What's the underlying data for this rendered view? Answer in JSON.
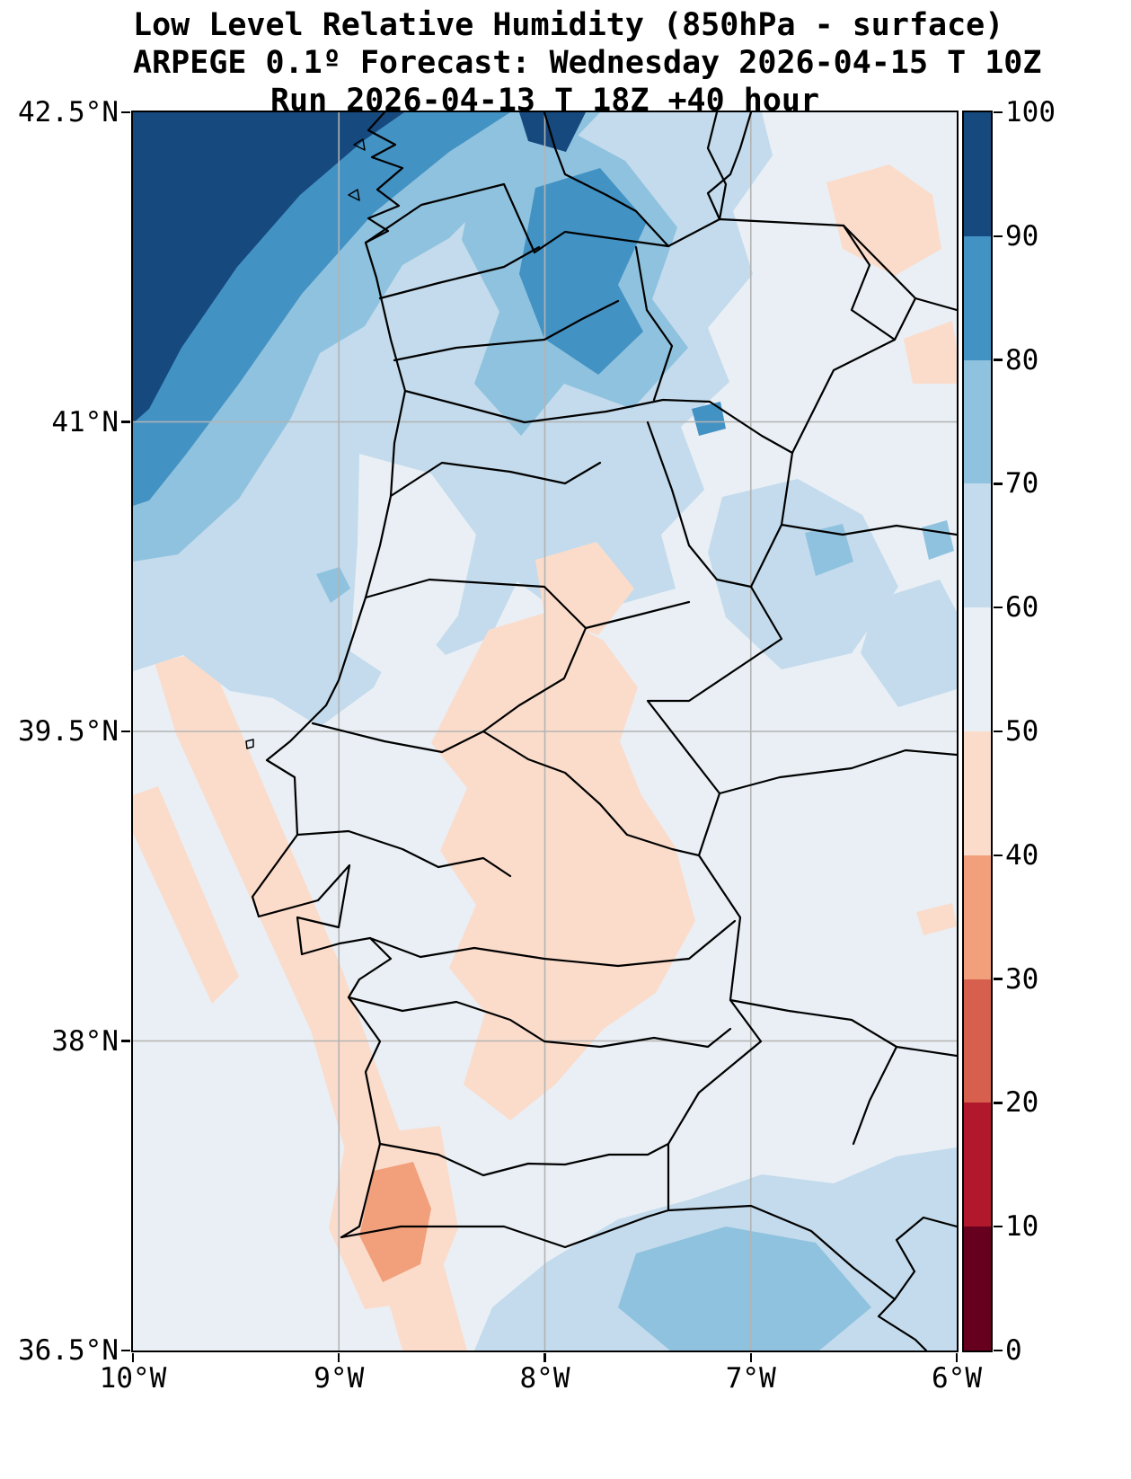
{
  "title": {
    "line1": "Low Level Relative Humidity (850hPa - surface)",
    "line2": "ARPEGE 0.1º Forecast: Wednesday 2026-04-15 T 10Z",
    "line3": "Run 2026-04-13 T 18Z +40 hour"
  },
  "axes": {
    "y_ticks": [
      {
        "label": "42.5°N",
        "lat": 42.5
      },
      {
        "label": "41°N",
        "lat": 41.0
      },
      {
        "label": "39.5°N",
        "lat": 39.5
      },
      {
        "label": "38°N",
        "lat": 38.0
      },
      {
        "label": "36.5°N",
        "lat": 36.5
      }
    ],
    "x_ticks": [
      {
        "label": "10°W",
        "lon": -10
      },
      {
        "label": "9°W",
        "lon": -9
      },
      {
        "label": "8°W",
        "lon": -8
      },
      {
        "label": "7°W",
        "lon": -7
      },
      {
        "label": "6°W",
        "lon": -6
      }
    ]
  },
  "colorbar": {
    "tick_labels": [
      "100",
      "90",
      "80",
      "70",
      "60",
      "50",
      "40",
      "30",
      "20",
      "10",
      "0"
    ],
    "order_top_to_bottom": [
      "90-100",
      "80-90",
      "70-80",
      "60-70",
      "50-60",
      "40-50",
      "30-40",
      "20-30",
      "10-20",
      "0-10"
    ],
    "levels": {
      "0-10": "#67001f",
      "10-20": "#b2182b",
      "20-30": "#d6604d",
      "30-40": "#f2a07b",
      "40-50": "#fbdccb",
      "50-60": "#e9eff5",
      "60-70": "#c3dbec",
      "70-80": "#8fc2de",
      "80-90": "#4392c4",
      "90-100": "#16497e"
    }
  },
  "map": {
    "gridline_color": "#b3b3b3",
    "boundary_color": "#000000"
  },
  "chart_data": {
    "type": "filled-contour-map",
    "title": "Low Level Relative Humidity (850hPa - surface)",
    "model": "ARPEGE 0.1º",
    "valid_time": "Wednesday 2026-04-15 T 10Z",
    "run": "2026-04-13 T 18Z +40 hour",
    "lon_range_deg_east": [
      -10,
      -6
    ],
    "lat_range_deg_north": [
      36.5,
      42.5
    ],
    "contour_levels": [
      0,
      10,
      20,
      30,
      40,
      50,
      60,
      70,
      80,
      90,
      100
    ],
    "colormap": "RdBu diverging (dark red low to dark blue high)",
    "region": "Portugal and western Spain with district/province boundaries",
    "field_summary": [
      "90-100 band (dark navy) over northwest Atlantic corner and Galician coast, touching the top edge near 8.2W",
      "Concentric 80-90, 70-80, 60-70 bands wrap the NW maximum and cover northern Portugal and Galicia",
      "Separate 70-90 patch over inland north Portugal / Ourense around 7.8-8.4W, 41.3-42.5N",
      "Background 50-60 pale band over most of central Iberia and southern ocean",
      "40-50 peach areas over interior central and southern Portugal (Alentejo) and diagonal streaks over the SW ocean",
      "40-50 peach patches near the top-right (NE corner) of the domain",
      "30-40 salmon minimum spot over the western Algarve near 8.7W, 37.3N",
      "60-70 blue band along the Gulf of Cadiz / south coast with a 70-80 core near 7.2W, 36.6N",
      "Scattered small 60-80 patches over east-central Spain near the right edge"
    ]
  }
}
